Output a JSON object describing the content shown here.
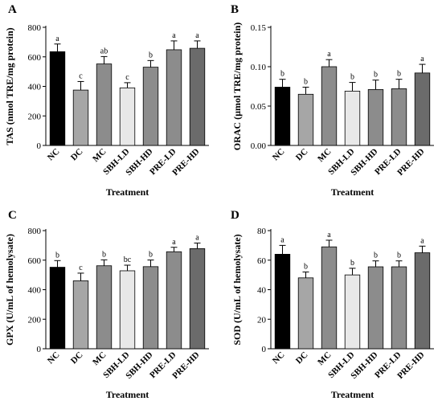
{
  "chart_data": [
    {
      "type": "bar",
      "panel": "A",
      "categories": [
        "NC",
        "DC",
        "MC",
        "SBH-LD",
        "SBH-HD",
        "PRE-LD",
        "PRE-HD"
      ],
      "values": [
        635,
        375,
        552,
        390,
        530,
        648,
        658
      ],
      "errors": [
        52,
        58,
        50,
        35,
        45,
        60,
        50
      ],
      "letters": [
        "a",
        "c",
        "ab",
        "c",
        "b",
        "a",
        "a"
      ],
      "ylabel": "TAS (nmol TRE/mg protein)",
      "xlabel": "Treatment",
      "ylim": [
        0,
        800
      ],
      "yticks": [
        "0",
        "200",
        "400",
        "600",
        "800"
      ],
      "colors": [
        "#000000",
        "#a6a6a6",
        "#8c8c8c",
        "#e8e8e8",
        "#8c8c8c",
        "#8c8c8c",
        "#6b6b6b"
      ]
    },
    {
      "type": "bar",
      "panel": "B",
      "categories": [
        "NC",
        "DC",
        "MC",
        "SBH-LD",
        "SBH-HD",
        "PRE-LD",
        "PRE-HD"
      ],
      "values": [
        0.074,
        0.065,
        0.1,
        0.069,
        0.071,
        0.072,
        0.092
      ],
      "errors": [
        0.01,
        0.009,
        0.009,
        0.011,
        0.012,
        0.012,
        0.011
      ],
      "letters": [
        "b",
        "b",
        "a",
        "b",
        "b",
        "b",
        "a"
      ],
      "ylabel": "ORAC (µmol TRE/mg protein)",
      "xlabel": "Treatment",
      "ylim": [
        0,
        0.15
      ],
      "yticks": [
        "0.00",
        "0.05",
        "0.10",
        "0.15"
      ],
      "colors": [
        "#000000",
        "#a6a6a6",
        "#8c8c8c",
        "#e8e8e8",
        "#8c8c8c",
        "#8c8c8c",
        "#6b6b6b"
      ]
    },
    {
      "type": "bar",
      "panel": "C",
      "categories": [
        "NC",
        "DC",
        "MC",
        "SBH-LD",
        "SBH-HD",
        "PRE-LD",
        "PRE-HD"
      ],
      "values": [
        552,
        460,
        562,
        528,
        556,
        657,
        678
      ],
      "errors": [
        45,
        52,
        40,
        38,
        45,
        30,
        38
      ],
      "letters": [
        "b",
        "c",
        "b",
        "bc",
        "b",
        "a",
        "a"
      ],
      "ylabel": "GPX (U/mL of hemolysate)",
      "xlabel": "Treatment",
      "ylim": [
        0,
        800
      ],
      "yticks": [
        "0",
        "200",
        "400",
        "600",
        "800"
      ],
      "colors": [
        "#000000",
        "#a6a6a6",
        "#8c8c8c",
        "#e8e8e8",
        "#8c8c8c",
        "#8c8c8c",
        "#6b6b6b"
      ]
    },
    {
      "type": "bar",
      "panel": "D",
      "categories": [
        "NC",
        "DC",
        "MC",
        "SBH-LD",
        "SBH-HD",
        "PRE-LD",
        "PRE-HD"
      ],
      "values": [
        64,
        48,
        69,
        50,
        55.5,
        55.5,
        65
      ],
      "errors": [
        6,
        4,
        4.5,
        4.5,
        4,
        4,
        4.5
      ],
      "letters": [
        "a",
        "b",
        "a",
        "b",
        "b",
        "b",
        "a"
      ],
      "ylabel": "SOD (U/mL of hemolysate)",
      "xlabel": "Treatment",
      "ylim": [
        0,
        80
      ],
      "yticks": [
        "0",
        "20",
        "40",
        "60",
        "80"
      ],
      "colors": [
        "#000000",
        "#a6a6a6",
        "#8c8c8c",
        "#e8e8e8",
        "#8c8c8c",
        "#8c8c8c",
        "#6b6b6b"
      ]
    }
  ]
}
